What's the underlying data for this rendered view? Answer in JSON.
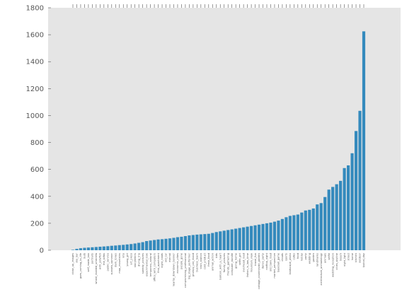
{
  "chart_data": {
    "type": "bar",
    "categories": [
      "close_up_images",
      "sky_bar",
      "goes_coming_to_life",
      "bulb",
      "self_made_box",
      "portraits",
      "wheel_molded_umbrella",
      "with_jellyfish",
      "the_sofas",
      "public_service",
      "sunsets_summer",
      "dark_tones",
      "map_mountains",
      "kite",
      "young_girl",
      "art_piece",
      "storytellers",
      "diving_trip",
      "speedy_pictures",
      "experimental_look",
      "temporary_natural",
      "office_with_computers",
      "first_apartment",
      "night_roads",
      "old_car",
      "eternal",
      "nearby_downtown_banner",
      "economic_vibes",
      "people_gone",
      "compromising_professional",
      "big_stage_performer",
      "grumpy_cat_mood",
      "business_team",
      "train_station",
      "cold_product",
      "fresh_food",
      "animal_action",
      "kids",
      "balloon_with_a_heart",
      "family_pictures",
      "friends_gathering",
      "computer_bundle",
      "going_home",
      "selfie_girl",
      "overhead_road",
      "father_in_law_time",
      "mountain_view",
      "travel_fun",
      "cottage_countryside_garden",
      "dance_party",
      "rooftop_night",
      "old_town_road",
      "market_perspective",
      "baseball_game",
      "clouds",
      "sports",
      "landscape_photo",
      "cafes",
      "food",
      "hobby",
      "party",
      "wedding",
      "garden",
      "landmarks",
      "architecture_archaeology",
      "animals",
      "selfie",
      "wedding_reception",
      "cities_skyline",
      "beach",
      "night_light",
      "street",
      "home",
      "kitchen",
      "outdoor",
      "typical_day"
    ],
    "values": [
      3,
      10,
      15,
      18,
      20,
      22,
      24,
      26,
      28,
      30,
      33,
      35,
      38,
      40,
      43,
      46,
      50,
      55,
      60,
      68,
      72,
      76,
      80,
      82,
      85,
      88,
      92,
      97,
      100,
      105,
      110,
      113,
      116,
      118,
      120,
      122,
      128,
      135,
      140,
      145,
      150,
      155,
      160,
      165,
      170,
      175,
      180,
      185,
      190,
      195,
      200,
      205,
      212,
      220,
      232,
      245,
      255,
      260,
      265,
      280,
      295,
      300,
      310,
      340,
      350,
      395,
      450,
      470,
      490,
      515,
      610,
      630,
      720,
      885,
      1035,
      1625
    ],
    "color": "#348abd",
    "background": "#e5e5e5",
    "ylim": [
      0,
      1800
    ],
    "yticks": [
      0,
      200,
      400,
      600,
      800,
      1000,
      1200,
      1400,
      1600,
      1800
    ]
  }
}
